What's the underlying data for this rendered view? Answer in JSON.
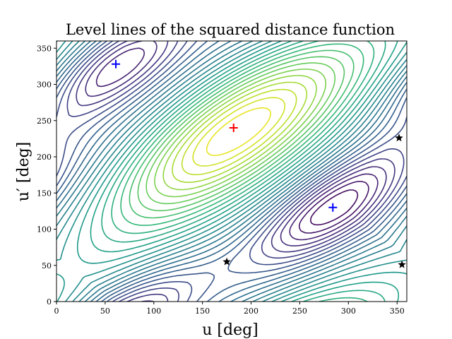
{
  "chart_data": {
    "type": "contour",
    "title": "Level lines of the squared distance function",
    "xlabel": "u [deg]",
    "ylabel": "u′ [deg]",
    "xlim": [
      0,
      360
    ],
    "ylim": [
      0,
      360
    ],
    "xticks": [
      0,
      50,
      100,
      150,
      200,
      250,
      300,
      350
    ],
    "yticks": [
      0,
      50,
      100,
      150,
      200,
      250,
      300,
      350
    ],
    "grid": false,
    "colormap": "viridis",
    "maxima": [
      {
        "x": 182,
        "y": 240,
        "marker": "plus",
        "color": "#ff0000"
      }
    ],
    "minima": [
      {
        "x": 61,
        "y": 328,
        "marker": "plus",
        "color": "#0000ff"
      },
      {
        "x": 284,
        "y": 130,
        "marker": "plus",
        "color": "#0000ff"
      }
    ],
    "saddles": [
      {
        "x": 175,
        "y": 55,
        "marker": "star",
        "color": "#000000"
      },
      {
        "x": 352,
        "y": 226,
        "marker": "star",
        "color": "#000000"
      },
      {
        "x": 355,
        "y": 51,
        "marker": "star",
        "color": "#000000"
      }
    ]
  }
}
